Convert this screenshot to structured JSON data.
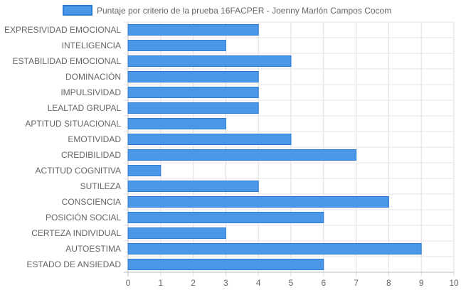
{
  "chart_data": {
    "type": "bar",
    "orientation": "horizontal",
    "legend_position": "top",
    "grid": true,
    "series": [
      {
        "name": "Puntaje por criterio de la prueba 16FACPER - Joenny Marlón Campos Cocom",
        "color": "#4a97e8",
        "border_color": "#2b7bd6",
        "values": [
          4,
          3,
          5,
          4,
          4,
          4,
          3,
          5,
          7,
          1,
          4,
          8,
          6,
          3,
          9,
          6
        ]
      }
    ],
    "categories": [
      "EXPRESIVIDAD EMOCIONAL",
      "INTELIGENCIA",
      "ESTABILIDAD EMOCIONAL",
      "DOMINACIÓN",
      "IMPULSIVIDAD",
      "LEALTAD GRUPAL",
      "APTITUD SITUACIONAL",
      "EMOTIVIDAD",
      "CREDIBILIDAD",
      "ACTITUD COGNITIVA",
      "SUTILEZA",
      "CONSCIENCIA",
      "POSICIÓN SOCIAL",
      "CERTEZA INDIVIDUAL",
      "AUTOESTIMA",
      "ESTADO DE ANSIEDAD"
    ],
    "xlim": [
      0,
      10
    ],
    "xticks": [
      "0",
      "1",
      "2",
      "3",
      "4",
      "5",
      "6",
      "7",
      "8",
      "9",
      "10"
    ]
  }
}
